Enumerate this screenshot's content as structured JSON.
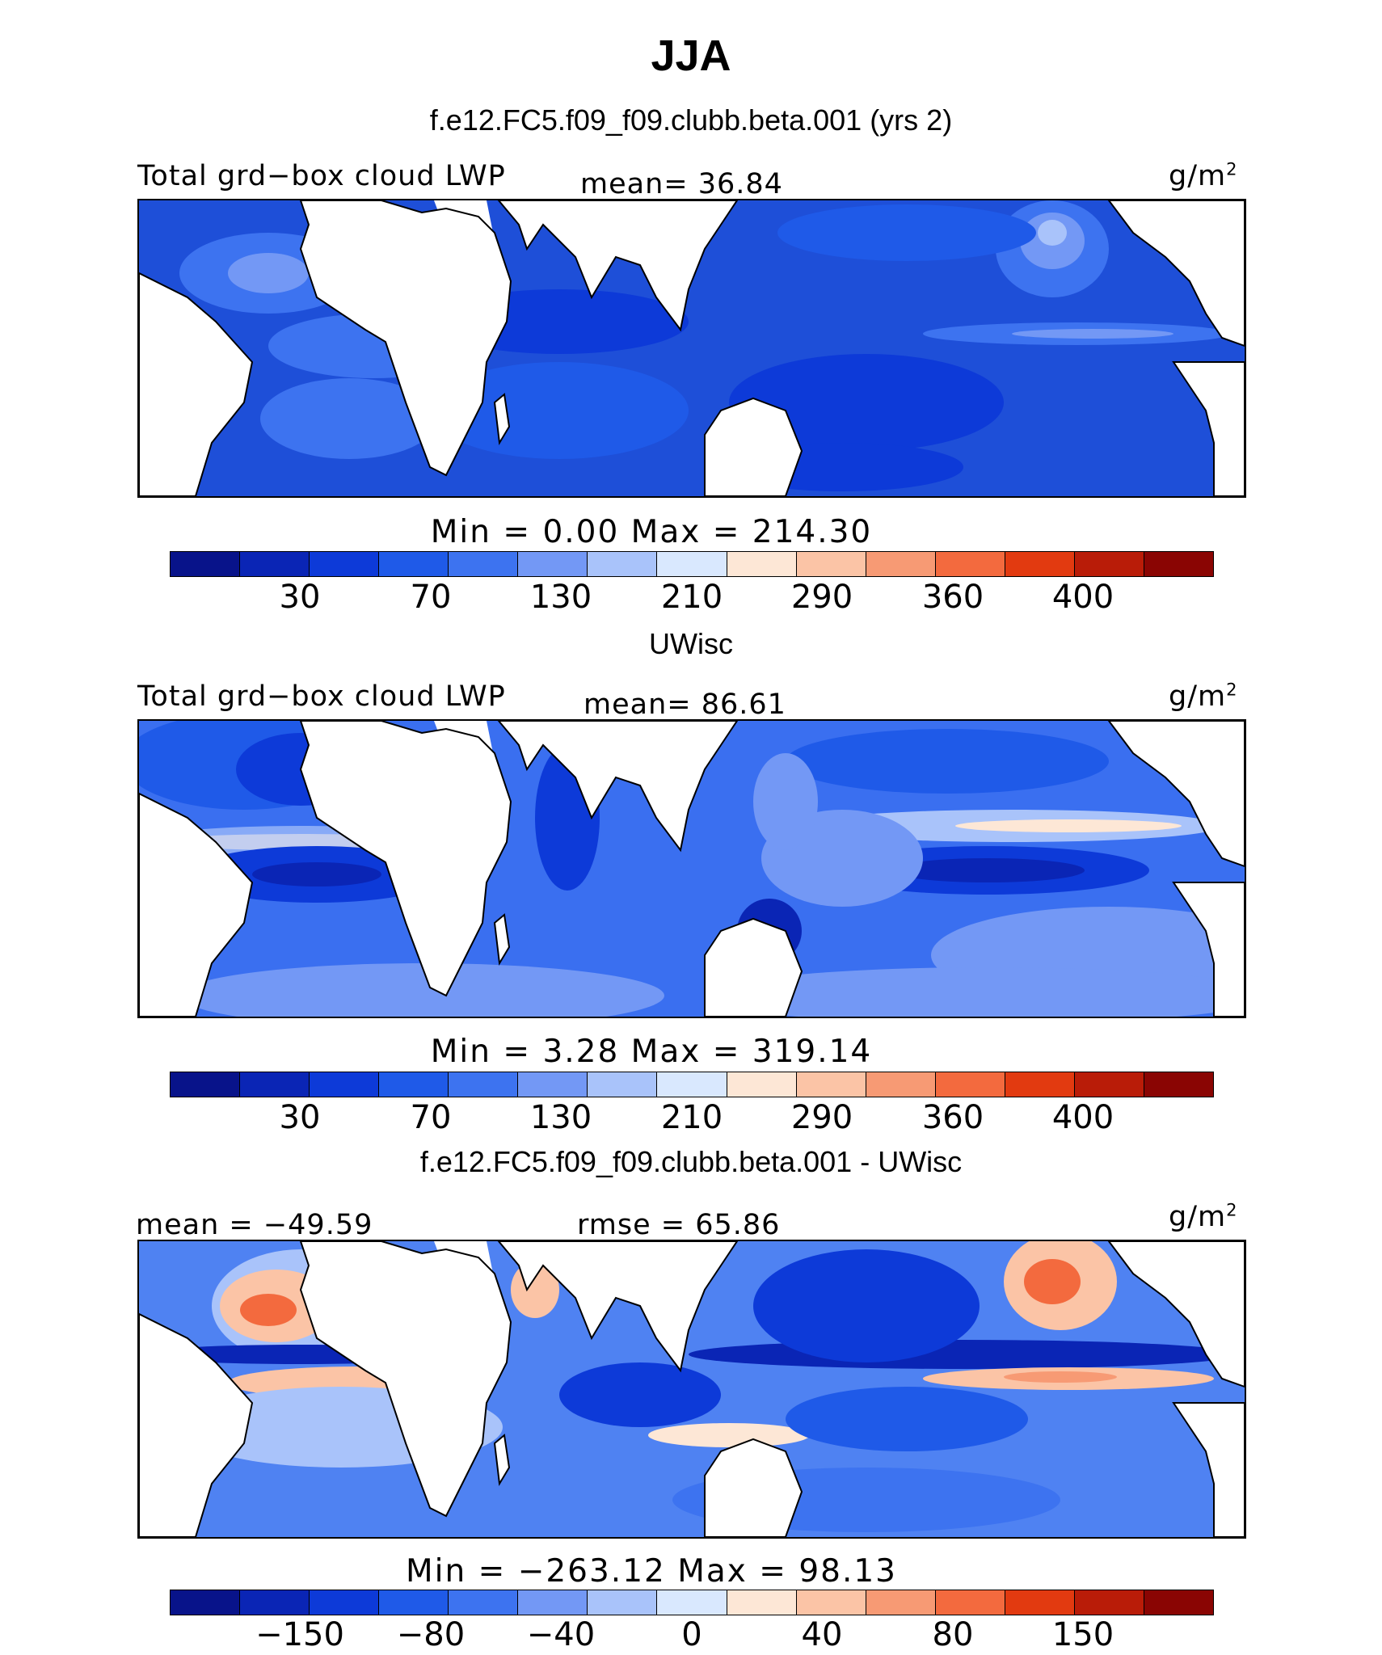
{
  "title": "JJA",
  "units_main": "g/m",
  "units_exp": "2",
  "panels": [
    {
      "title": "f.e12.FC5.f09_f09.clubb.beta.001 (yrs 2)",
      "left_label": "Total grd−box cloud LWP",
      "center_label": "mean=  36.84",
      "minmax": "Min =    0.00 Max = 214.30",
      "ticks": [
        "30",
        "70",
        "130",
        "210",
        "290",
        "360",
        "400"
      ],
      "ocean_color": "#1e4fd8"
    },
    {
      "title": "UWisc",
      "left_label": "Total grd−box cloud LWP",
      "center_label": "mean=  86.61",
      "minmax": "Min =    3.28 Max = 319.14",
      "ticks": [
        "30",
        "70",
        "130",
        "210",
        "290",
        "360",
        "400"
      ],
      "ocean_color": "#3a6ff0"
    },
    {
      "title": "f.e12.FC5.f09_f09.clubb.beta.001 - UWisc",
      "left_label": "mean = −49.59",
      "center_label": "rmse =  65.86",
      "minmax": "Min = −263.12 Max =  98.13",
      "ticks": [
        "−150",
        "−80",
        "−40",
        "0",
        "40",
        "80",
        "150"
      ],
      "ocean_color": "#4f82f2"
    }
  ],
  "colorbar_colors": [
    "#08138a",
    "#0a25b5",
    "#0d3ad8",
    "#1f5ae8",
    "#3d73f0",
    "#7398f5",
    "#a9c3fa",
    "#d9e8fe",
    "#fde7d6",
    "#fbc4a6",
    "#f79a74",
    "#f36a3e",
    "#e23a10",
    "#b91c08",
    "#8a0503"
  ]
}
